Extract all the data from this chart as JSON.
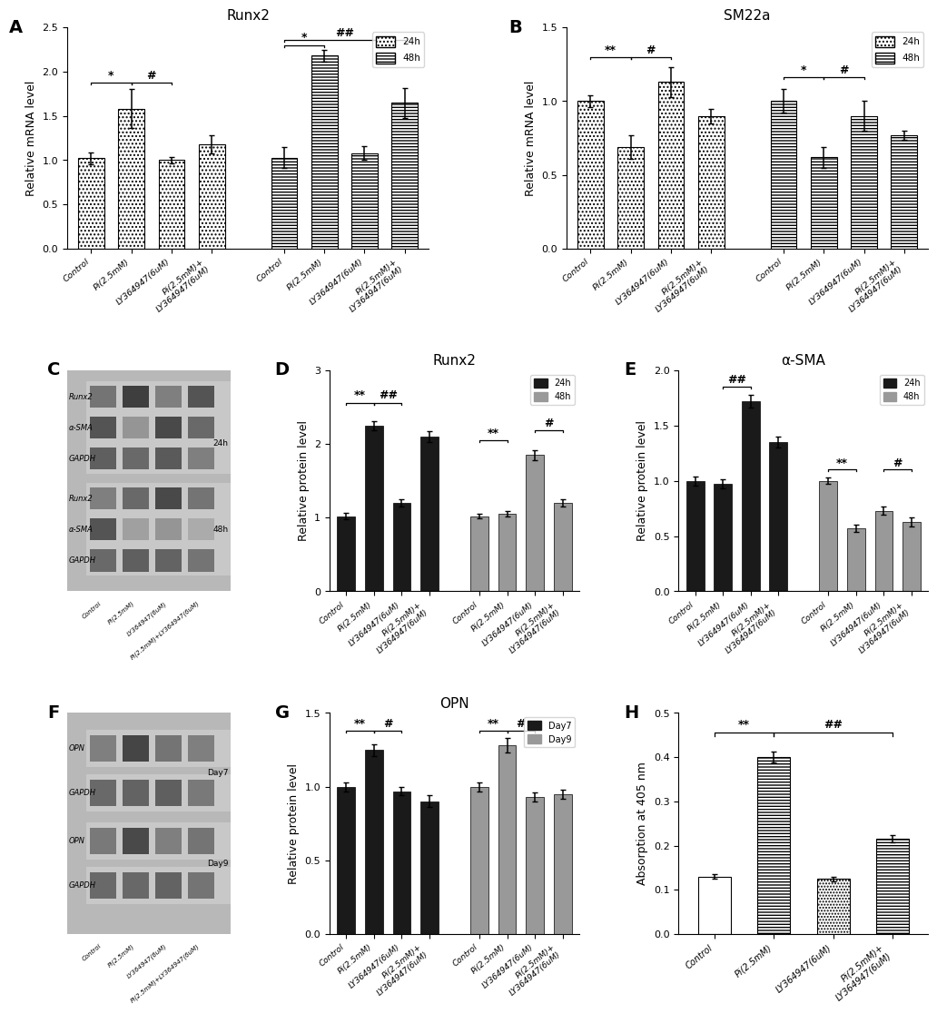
{
  "panel_A": {
    "title": "Runx2",
    "ylabel": "Relative mRNA level",
    "ylim": [
      0,
      2.5
    ],
    "yticks": [
      0.0,
      0.5,
      1.0,
      1.5,
      2.0,
      2.5
    ],
    "categories": [
      "Control",
      "Pi(2.5mM)",
      "LY364947(6uM)",
      "Pi(2.5mM)+\nLY364947(6uM)"
    ],
    "values_24h": [
      1.02,
      1.58,
      1.0,
      1.18
    ],
    "errors_24h": [
      0.07,
      0.22,
      0.04,
      0.1
    ],
    "values_48h": [
      1.03,
      2.18,
      1.08,
      1.65
    ],
    "errors_48h": [
      0.12,
      0.07,
      0.08,
      0.17
    ]
  },
  "panel_B": {
    "title": "SM22a",
    "ylabel": "Relative mRNA level",
    "ylim": [
      0,
      1.5
    ],
    "yticks": [
      0.0,
      0.5,
      1.0,
      1.5
    ],
    "categories": [
      "Control",
      "Pi(2.5mM)",
      "LY364947(6uM)",
      "Pi(2.5mM)+\nLY364947(6uM)"
    ],
    "values_24h": [
      1.0,
      0.69,
      1.13,
      0.9
    ],
    "errors_24h": [
      0.04,
      0.08,
      0.1,
      0.05
    ],
    "values_48h": [
      1.0,
      0.62,
      0.9,
      0.77
    ],
    "errors_48h": [
      0.08,
      0.07,
      0.1,
      0.03
    ]
  },
  "panel_D": {
    "title": "Runx2",
    "ylabel": "Relative protein level",
    "ylim": [
      0,
      3.0
    ],
    "yticks": [
      0.0,
      1.0,
      2.0,
      3.0
    ],
    "categories": [
      "Control",
      "Pi(2.5mM)",
      "LY364947(6uM)",
      "Pi(2.5mM)+\nLY364947(6uM)"
    ],
    "values_24h": [
      1.02,
      2.25,
      1.2,
      2.1
    ],
    "errors_24h": [
      0.04,
      0.06,
      0.05,
      0.07
    ],
    "values_48h": [
      1.02,
      1.05,
      1.85,
      1.2
    ],
    "errors_48h": [
      0.03,
      0.04,
      0.07,
      0.05
    ]
  },
  "panel_E": {
    "title": "α-SMA",
    "ylabel": "Relative protein level",
    "ylim": [
      0,
      2.0
    ],
    "yticks": [
      0.0,
      0.5,
      1.0,
      1.5,
      2.0
    ],
    "categories": [
      "Control",
      "Pi(2.5mM)",
      "LY364947(6uM)",
      "Pi(2.5mM)+\nLY364947(6uM)"
    ],
    "values_24h": [
      1.0,
      0.97,
      1.72,
      1.35
    ],
    "errors_24h": [
      0.04,
      0.04,
      0.06,
      0.05
    ],
    "values_48h": [
      1.0,
      0.57,
      0.73,
      0.63
    ],
    "errors_48h": [
      0.03,
      0.03,
      0.04,
      0.04
    ]
  },
  "panel_G": {
    "title": "OPN",
    "ylabel": "Relative protein level",
    "ylim": [
      0,
      1.5
    ],
    "yticks": [
      0.0,
      0.5,
      1.0,
      1.5
    ],
    "categories": [
      "Control",
      "Pi(2.5mM)",
      "LY364947(6uM)",
      "Pi(2.5mM)+\nLY364947(6uM)"
    ],
    "values_day7": [
      1.0,
      1.25,
      0.97,
      0.9
    ],
    "errors_day7": [
      0.03,
      0.04,
      0.03,
      0.04
    ],
    "values_day9": [
      1.0,
      1.28,
      0.93,
      0.95
    ],
    "errors_day9": [
      0.03,
      0.05,
      0.03,
      0.03
    ]
  },
  "panel_H": {
    "ylabel": "Absorption at 405 nm",
    "ylim": [
      0,
      0.5
    ],
    "yticks": [
      0.0,
      0.1,
      0.2,
      0.3,
      0.4,
      0.5
    ],
    "categories": [
      "Control",
      "Pi(2.5mM)",
      "LY364947(6uM)",
      "Pi(2.5mM)+\nLY364947(6uM)"
    ],
    "values": [
      0.13,
      0.4,
      0.125,
      0.215
    ],
    "errors": [
      0.005,
      0.012,
      0.005,
      0.008
    ],
    "hatches": [
      "",
      "-----",
      ".....",
      "-----"
    ]
  },
  "label_fontsize": 9,
  "title_fontsize": 11,
  "tick_fontsize": 8,
  "sig_fontsize": 9,
  "color_dark": "#1a1a1a",
  "color_gray": "#999999"
}
